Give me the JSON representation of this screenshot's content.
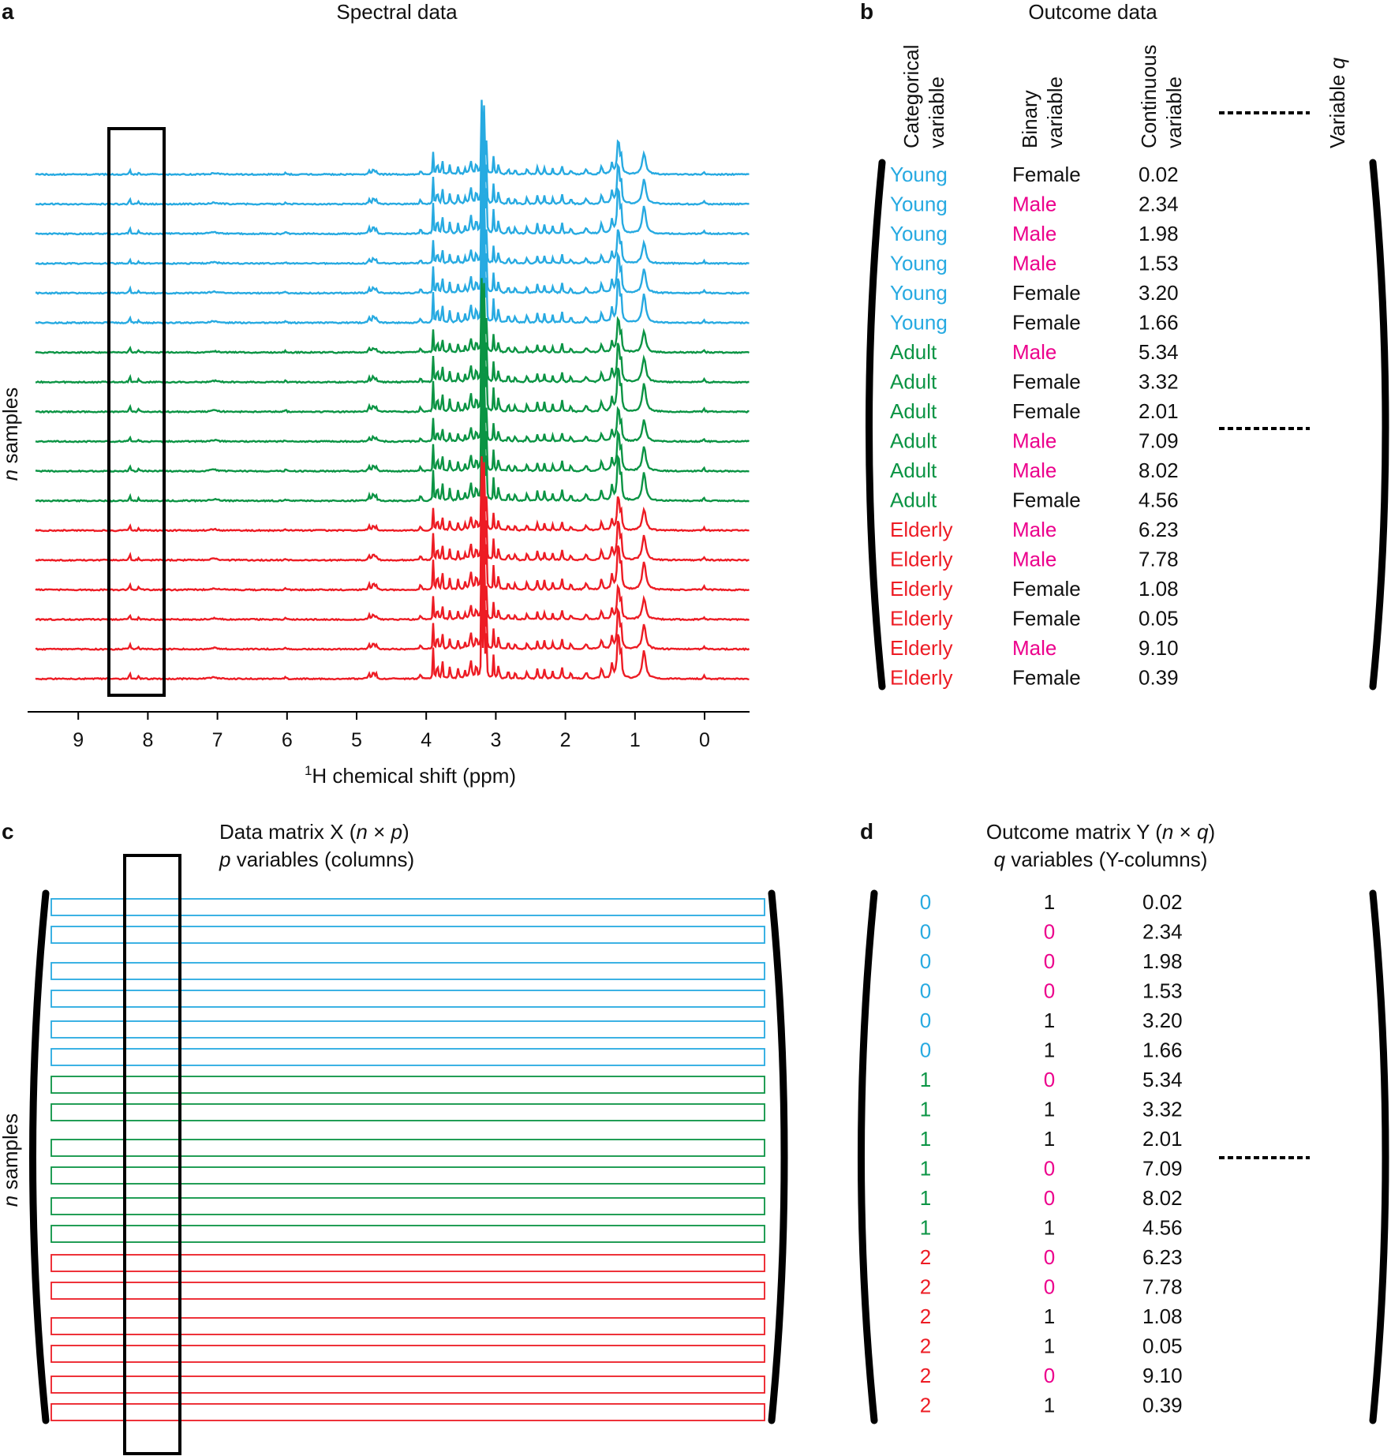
{
  "panels": {
    "a": {
      "label": "a",
      "title": "Spectral data",
      "y_label_italic": "n",
      "y_label_rest": " samples",
      "x_label_sup": "1",
      "x_label_rest": "H chemical shift (ppm)",
      "ticks": [
        "9",
        "8",
        "7",
        "6",
        "5",
        "4",
        "3",
        "2",
        "1",
        "0"
      ]
    },
    "b": {
      "label": "b",
      "title": "Outcome data",
      "col_headers": [
        {
          "line1": "Categorical",
          "line2": "variable"
        },
        {
          "line1": "Binary",
          "line2": "variable"
        },
        {
          "line1": "Continuous",
          "line2": "variable"
        }
      ],
      "extra_header_prefix": "Variable ",
      "extra_header_italic": "q"
    },
    "c": {
      "label": "c",
      "title_prefix": "Data matrix X (",
      "title_n": "n",
      "title_times": " × ",
      "title_p": "p",
      "title_suffix": ")",
      "subtitle_p": "p",
      "subtitle_rest": " variables (columns)",
      "y_label_italic": "n",
      "y_label_rest": " samples"
    },
    "d": {
      "label": "d",
      "title_prefix": "Outcome matrix Y (",
      "title_n": "n",
      "title_times": " × ",
      "title_q": "q",
      "title_suffix": ")",
      "subtitle_q": "q",
      "subtitle_rest": " variables (Y-columns)"
    }
  },
  "colors": {
    "Young": "#27aae1",
    "Adult": "#0b9444",
    "Elderly": "#ed1c24",
    "Male": "#ec008c",
    "Female": "#111111"
  },
  "samples": [
    {
      "group": "Young",
      "sex": "Female",
      "value": "0.02",
      "code": "0",
      "bin": "1"
    },
    {
      "group": "Young",
      "sex": "Male",
      "value": "2.34",
      "code": "0",
      "bin": "0"
    },
    {
      "group": "Young",
      "sex": "Male",
      "value": "1.98",
      "code": "0",
      "bin": "0"
    },
    {
      "group": "Young",
      "sex": "Male",
      "value": "1.53",
      "code": "0",
      "bin": "0"
    },
    {
      "group": "Young",
      "sex": "Female",
      "value": "3.20",
      "code": "0",
      "bin": "1"
    },
    {
      "group": "Young",
      "sex": "Female",
      "value": "1.66",
      "code": "0",
      "bin": "1"
    },
    {
      "group": "Adult",
      "sex": "Male",
      "value": "5.34",
      "code": "1",
      "bin": "0"
    },
    {
      "group": "Adult",
      "sex": "Female",
      "value": "3.32",
      "code": "1",
      "bin": "1"
    },
    {
      "group": "Adult",
      "sex": "Female",
      "value": "2.01",
      "code": "1",
      "bin": "1"
    },
    {
      "group": "Adult",
      "sex": "Male",
      "value": "7.09",
      "code": "1",
      "bin": "0"
    },
    {
      "group": "Adult",
      "sex": "Male",
      "value": "8.02",
      "code": "1",
      "bin": "0"
    },
    {
      "group": "Adult",
      "sex": "Female",
      "value": "4.56",
      "code": "1",
      "bin": "1"
    },
    {
      "group": "Elderly",
      "sex": "Male",
      "value": "6.23",
      "code": "2",
      "bin": "0"
    },
    {
      "group": "Elderly",
      "sex": "Male",
      "value": "7.78",
      "code": "2",
      "bin": "0"
    },
    {
      "group": "Elderly",
      "sex": "Female",
      "value": "1.08",
      "code": "2",
      "bin": "1"
    },
    {
      "group": "Elderly",
      "sex": "Female",
      "value": "0.05",
      "code": "2",
      "bin": "1"
    },
    {
      "group": "Elderly",
      "sex": "Male",
      "value": "9.10",
      "code": "2",
      "bin": "0"
    },
    {
      "group": "Elderly",
      "sex": "Female",
      "value": "0.39",
      "code": "2",
      "bin": "1"
    }
  ]
}
